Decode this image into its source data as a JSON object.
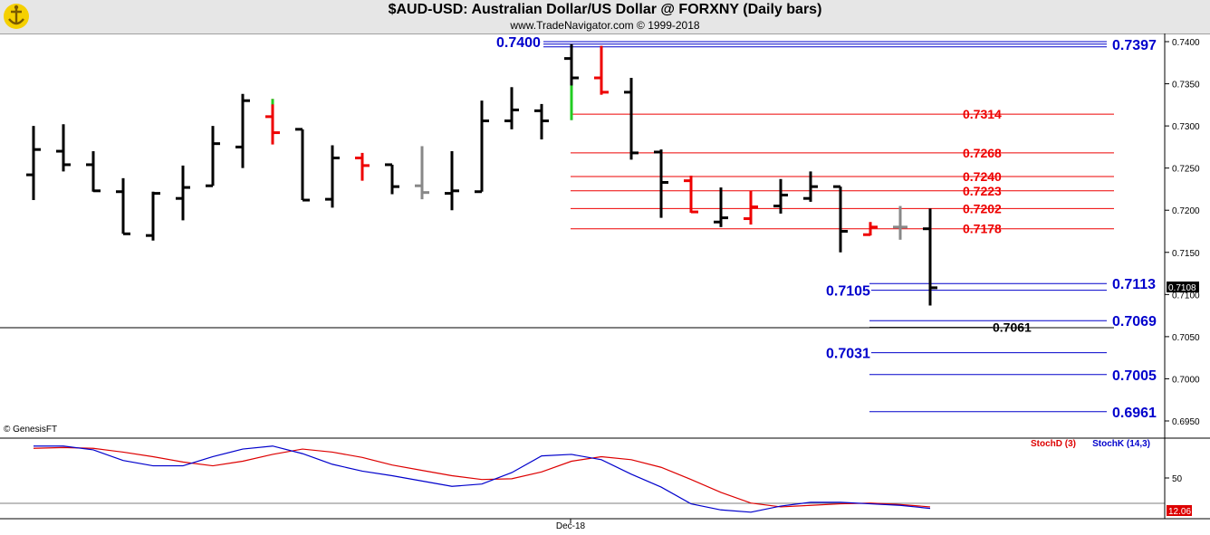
{
  "header": {
    "title": "$AUD-USD:  Australian Dollar/US Dollar @ FORXNY  (Daily bars)",
    "subtitle": "www.TradeNavigator.com © 1999-2018"
  },
  "watermark": "© GenesisFT",
  "logo_icon": "ship-anchor-logo-icon",
  "chart_data": [
    {
      "type": "ohlc",
      "panel": "price",
      "ylim": [
        0.6925,
        0.742
      ],
      "yticks": [
        "0.7400",
        "0.7350",
        "0.7300",
        "0.7250",
        "0.7200",
        "0.7150",
        "0.7100",
        "0.7050",
        "0.7000",
        "0.6950"
      ],
      "last_price": "0.7108",
      "bars": [
        {
          "o": 0.7242,
          "h": 0.73,
          "l": 0.7212,
          "c": 0.7272,
          "color": "#000000"
        },
        {
          "o": 0.727,
          "h": 0.7302,
          "l": 0.7246,
          "c": 0.7254,
          "color": "#000000"
        },
        {
          "o": 0.7254,
          "h": 0.727,
          "l": 0.7222,
          "c": 0.7223,
          "color": "#000000"
        },
        {
          "o": 0.7222,
          "h": 0.7238,
          "l": 0.7172,
          "c": 0.7172,
          "color": "#000000"
        },
        {
          "o": 0.717,
          "h": 0.7222,
          "l": 0.7164,
          "c": 0.722,
          "color": "#000000"
        },
        {
          "o": 0.7214,
          "h": 0.7253,
          "l": 0.7188,
          "c": 0.7227,
          "color": "#000000"
        },
        {
          "o": 0.7229,
          "h": 0.73,
          "l": 0.7229,
          "c": 0.7279,
          "color": "#000000"
        },
        {
          "o": 0.7275,
          "h": 0.7338,
          "l": 0.725,
          "c": 0.733,
          "color": "#000000"
        },
        {
          "o": 0.7311,
          "h": 0.7332,
          "l": 0.7278,
          "c": 0.7292,
          "color": "#ee0000",
          "high_tick_color": "#22cc22"
        },
        {
          "o": 0.7296,
          "h": 0.7296,
          "l": 0.7212,
          "c": 0.7212,
          "color": "#000000"
        },
        {
          "o": 0.7213,
          "h": 0.7277,
          "l": 0.7203,
          "c": 0.7262,
          "color": "#000000"
        },
        {
          "o": 0.7262,
          "h": 0.7268,
          "l": 0.7235,
          "c": 0.7253,
          "color": "#ee0000"
        },
        {
          "o": 0.7254,
          "h": 0.7254,
          "l": 0.7219,
          "c": 0.7228,
          "color": "#000000"
        },
        {
          "o": 0.7229,
          "h": 0.7276,
          "l": 0.7213,
          "c": 0.7221,
          "color": "#888888"
        },
        {
          "o": 0.722,
          "h": 0.727,
          "l": 0.72,
          "c": 0.7223,
          "color": "#000000"
        },
        {
          "o": 0.7222,
          "h": 0.733,
          "l": 0.7222,
          "c": 0.7306,
          "color": "#000000"
        },
        {
          "o": 0.7306,
          "h": 0.7346,
          "l": 0.7296,
          "c": 0.7319,
          "color": "#000000"
        },
        {
          "o": 0.7318,
          "h": 0.7326,
          "l": 0.7284,
          "c": 0.7306,
          "color": "#000000"
        },
        {
          "o": 0.738,
          "h": 0.7397,
          "l": 0.7307,
          "c": 0.7357,
          "color": "#000000",
          "low_tick_color": "#22cc22",
          "green_to": 0.7348
        },
        {
          "o": 0.7357,
          "h": 0.7395,
          "l": 0.7337,
          "c": 0.734,
          "color": "#ee0000"
        },
        {
          "o": 0.734,
          "h": 0.7357,
          "l": 0.726,
          "c": 0.7268,
          "color": "#000000"
        },
        {
          "o": 0.7269,
          "h": 0.7272,
          "l": 0.7191,
          "c": 0.7233,
          "color": "#000000"
        },
        {
          "o": 0.7235,
          "h": 0.7241,
          "l": 0.7197,
          "c": 0.7198,
          "color": "#ee0000"
        },
        {
          "o": 0.7186,
          "h": 0.7227,
          "l": 0.718,
          "c": 0.7191,
          "color": "#000000"
        },
        {
          "o": 0.719,
          "h": 0.7223,
          "l": 0.7183,
          "c": 0.7204,
          "color": "#ee0000"
        },
        {
          "o": 0.7205,
          "h": 0.7237,
          "l": 0.7196,
          "c": 0.7218,
          "color": "#000000"
        },
        {
          "o": 0.7214,
          "h": 0.7246,
          "l": 0.721,
          "c": 0.7228,
          "color": "#000000"
        },
        {
          "o": 0.7228,
          "h": 0.7228,
          "l": 0.715,
          "c": 0.7175,
          "color": "#000000"
        },
        {
          "o": 0.7171,
          "h": 0.7186,
          "l": 0.717,
          "c": 0.718,
          "color": "#ee0000"
        },
        {
          "o": 0.718,
          "h": 0.7205,
          "l": 0.7165,
          "c": 0.718,
          "color": "#888888"
        },
        {
          "o": 0.7178,
          "h": 0.7202,
          "l": 0.7087,
          "c": 0.7108,
          "color": "#000000"
        }
      ],
      "levels_red": [
        {
          "label": "0.7314",
          "value": 0.7314
        },
        {
          "label": "0.7268",
          "value": 0.7268
        },
        {
          "label": "0.7240",
          "value": 0.724
        },
        {
          "label": "0.7223",
          "value": 0.7223
        },
        {
          "label": "0.7202",
          "value": 0.7202
        },
        {
          "label": "0.7178",
          "value": 0.7178
        }
      ],
      "levels_blue_right": [
        {
          "label": "0.7397",
          "value": 0.7397
        },
        {
          "label": "0.7113",
          "value": 0.7113
        },
        {
          "label": "0.7069",
          "value": 0.7069
        },
        {
          "label": "0.7005",
          "value": 0.7005
        },
        {
          "label": "0.6961",
          "value": 0.6961
        }
      ],
      "levels_blue_left": [
        {
          "label": "0.7400",
          "value": 0.74
        },
        {
          "label": "0.7105",
          "value": 0.7105
        },
        {
          "label": "0.7031",
          "value": 0.7031
        }
      ],
      "level_black": {
        "label": "0.7061",
        "value": 0.7061
      }
    },
    {
      "type": "line",
      "panel": "stochastic",
      "ylim": [
        0,
        100
      ],
      "yticks": [
        "50"
      ],
      "x_label": "Dec-18",
      "last_value": "12.06",
      "series": [
        {
          "name": "StochD (3)",
          "color": "#dd0000",
          "values": [
            89,
            90,
            89,
            84,
            78,
            71,
            66,
            72,
            81,
            88,
            84,
            77,
            67,
            60,
            53,
            48,
            49,
            58,
            72,
            78,
            74,
            64,
            48,
            31,
            17,
            12,
            14,
            16,
            17,
            15,
            12
          ]
        },
        {
          "name": "StochK (14,3)",
          "color": "#0000cc",
          "values": [
            92,
            92,
            87,
            73,
            66,
            66,
            78,
            88,
            92,
            82,
            68,
            59,
            53,
            46,
            39,
            42,
            57,
            79,
            81,
            74,
            55,
            38,
            16,
            8,
            5,
            13,
            18,
            18,
            16,
            14,
            10
          ]
        }
      ]
    }
  ]
}
